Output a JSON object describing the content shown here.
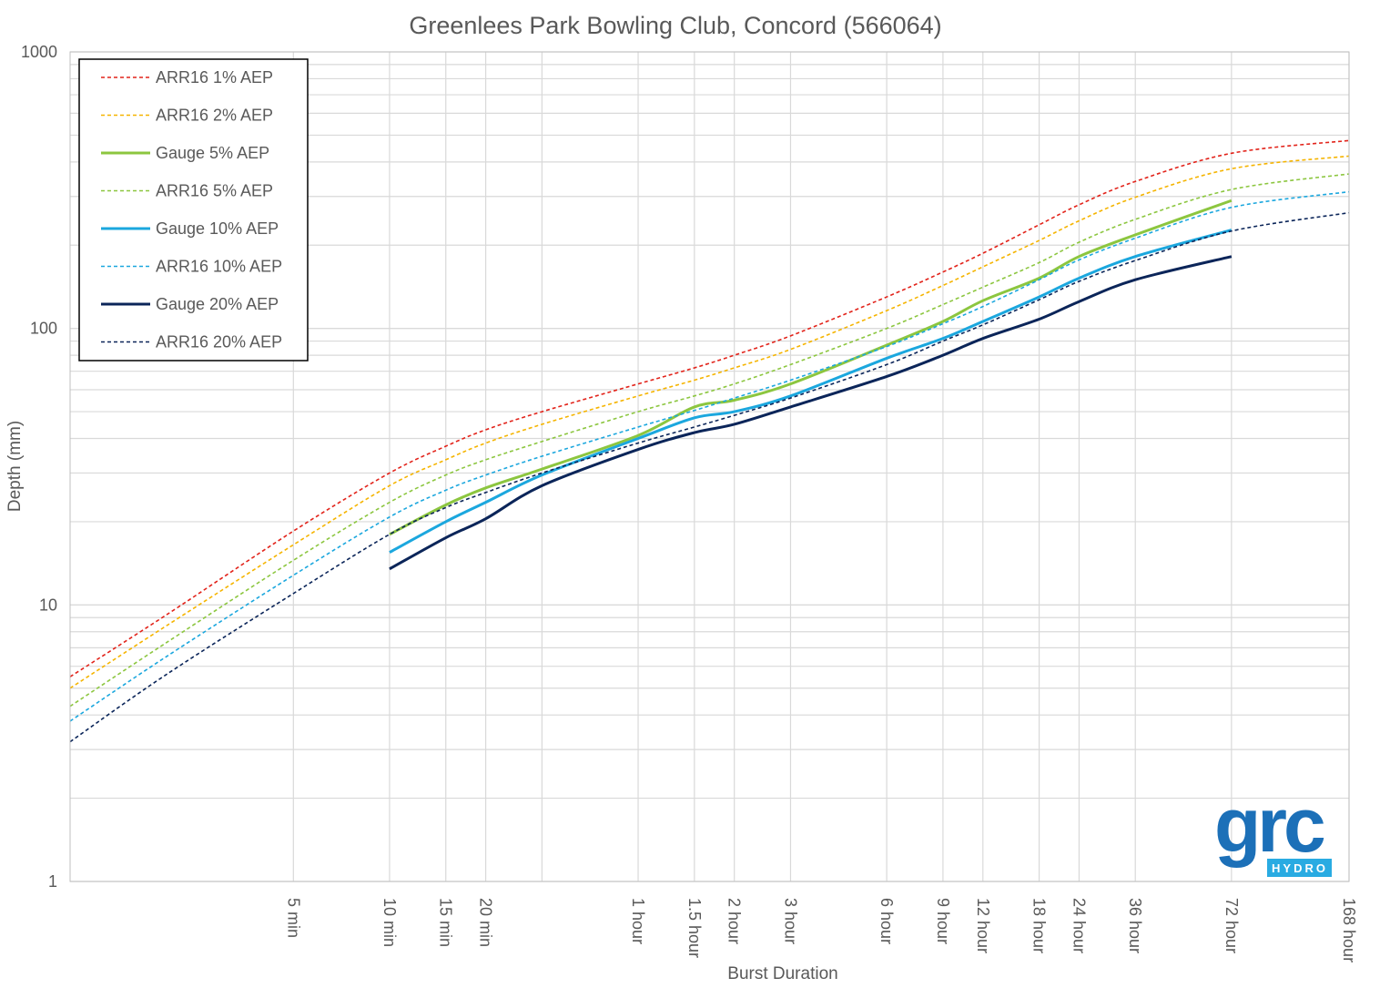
{
  "chart_data": {
    "type": "line",
    "title": "Greenlees Park Bowling Club, Concord (566064)",
    "xlabel": "Burst Duration",
    "ylabel": "Depth (mm)",
    "x_scale": "log",
    "y_scale": "log",
    "x_unit": "minutes",
    "xlim": [
      1,
      10080
    ],
    "ylim": [
      1,
      1000
    ],
    "grid": true,
    "legend_position": "top-left",
    "x_ticks": [
      {
        "value": 5,
        "label": "5 min"
      },
      {
        "value": 10,
        "label": "10 min"
      },
      {
        "value": 15,
        "label": "15 min"
      },
      {
        "value": 20,
        "label": "20 min"
      },
      {
        "value": 60,
        "label": "1 hour"
      },
      {
        "value": 90,
        "label": "1.5 hour"
      },
      {
        "value": 120,
        "label": "2 hour"
      },
      {
        "value": 180,
        "label": "3 hour"
      },
      {
        "value": 360,
        "label": "6 hour"
      },
      {
        "value": 540,
        "label": "9 hour"
      },
      {
        "value": 720,
        "label": "12 hour"
      },
      {
        "value": 1080,
        "label": "18 hour"
      },
      {
        "value": 1440,
        "label": "24 hour"
      },
      {
        "value": 2160,
        "label": "36 hour"
      },
      {
        "value": 4320,
        "label": "72 hour"
      },
      {
        "value": 10080,
        "label": "168 hour"
      }
    ],
    "y_ticks": [
      {
        "value": 1,
        "label": "1"
      },
      {
        "value": 10,
        "label": "10"
      },
      {
        "value": 100,
        "label": "100"
      },
      {
        "value": 1000,
        "label": "1000"
      }
    ],
    "series": [
      {
        "name": "ARR16 1% AEP",
        "color": "#e2231a",
        "style": "dashed",
        "x": [
          1,
          2,
          5,
          10,
          15,
          20,
          30,
          60,
          90,
          120,
          180,
          360,
          540,
          720,
          1080,
          1440,
          2160,
          4320,
          10080
        ],
        "y": [
          5.5,
          9.2,
          18.5,
          30,
          37.5,
          43,
          50,
          63,
          72,
          80,
          94,
          130,
          160,
          187,
          237,
          280,
          340,
          430,
          478
        ]
      },
      {
        "name": "ARR16 2% AEP",
        "color": "#f5b400",
        "style": "dashed",
        "x": [
          1,
          2,
          5,
          10,
          15,
          20,
          30,
          60,
          90,
          120,
          180,
          360,
          540,
          720,
          1080,
          1440,
          2160,
          4320,
          10080
        ],
        "y": [
          5.0,
          8.4,
          16.5,
          27,
          33.5,
          38.5,
          45,
          57,
          65,
          72,
          84,
          116,
          143,
          167,
          208,
          245,
          298,
          378,
          420
        ]
      },
      {
        "name": "Gauge 5% AEP",
        "color": "#8cc63f",
        "style": "solid",
        "x": [
          10,
          15,
          20,
          30,
          60,
          90,
          120,
          180,
          360,
          540,
          720,
          1080,
          1440,
          2160,
          4320
        ],
        "y": [
          18,
          23,
          26.5,
          31,
          41,
          52,
          55,
          63,
          87,
          106,
          126,
          152,
          182,
          218,
          290
        ]
      },
      {
        "name": "ARR16 5% AEP",
        "color": "#8cc63f",
        "style": "dashed",
        "x": [
          1,
          2,
          5,
          10,
          15,
          20,
          30,
          60,
          90,
          120,
          180,
          360,
          540,
          720,
          1080,
          1440,
          2160,
          4320,
          10080
        ],
        "y": [
          4.3,
          7.3,
          14.5,
          23.5,
          29.5,
          33.5,
          39,
          50,
          57,
          63,
          74,
          100,
          122,
          141,
          173,
          205,
          248,
          318,
          362
        ]
      },
      {
        "name": "Gauge 10% AEP",
        "color": "#1ba7de",
        "style": "solid",
        "x": [
          10,
          15,
          20,
          30,
          60,
          90,
          120,
          180,
          360,
          540,
          720,
          1080,
          1440,
          2160,
          4320
        ],
        "y": [
          15.5,
          20,
          23.5,
          29.5,
          40,
          47.5,
          50,
          57,
          78,
          92,
          106,
          130,
          152,
          182,
          227
        ]
      },
      {
        "name": "ARR16 10% AEP",
        "color": "#1ba7de",
        "style": "dashed",
        "x": [
          1,
          2,
          5,
          10,
          15,
          20,
          30,
          60,
          90,
          120,
          180,
          360,
          540,
          720,
          1080,
          1440,
          2160,
          4320,
          10080
        ],
        "y": [
          3.8,
          6.5,
          12.8,
          20.8,
          26,
          29.5,
          34.5,
          44,
          50.5,
          56,
          65,
          86,
          104,
          120,
          150,
          177,
          212,
          274,
          312
        ]
      },
      {
        "name": "Gauge 20% AEP",
        "color": "#0b2559",
        "style": "solid",
        "x": [
          10,
          15,
          20,
          30,
          60,
          90,
          120,
          180,
          360,
          540,
          720,
          1080,
          1440,
          2160,
          4320
        ],
        "y": [
          13.5,
          17.5,
          20.5,
          27,
          36.5,
          42,
          45,
          52,
          67,
          80,
          92,
          108,
          125,
          150,
          182
        ]
      },
      {
        "name": "ARR16 20% AEP",
        "color": "#0b2559",
        "style": "dashed",
        "x": [
          1,
          2,
          5,
          10,
          15,
          20,
          30,
          60,
          90,
          120,
          180,
          360,
          540,
          720,
          1080,
          1440,
          2160,
          4320,
          10080
        ],
        "y": [
          3.2,
          5.6,
          11,
          18,
          22.5,
          25.5,
          30,
          38.5,
          44,
          48.5,
          56,
          74,
          90,
          103,
          127,
          148,
          176,
          225,
          262
        ]
      }
    ]
  },
  "logo": {
    "text": "grc",
    "subtext": "HYDRO",
    "color": "#1c70b8",
    "accent_color": "#29abe2"
  }
}
